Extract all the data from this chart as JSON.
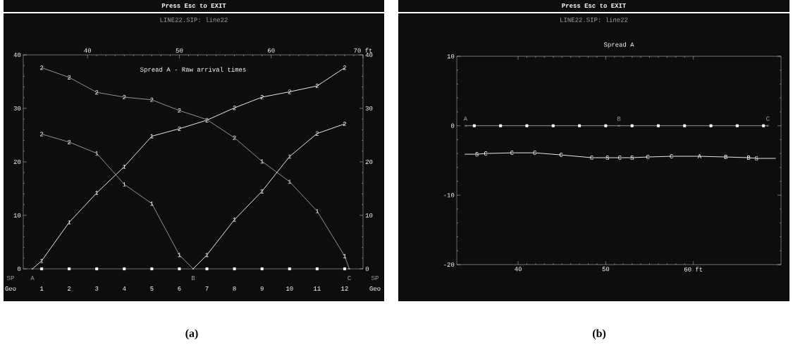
{
  "chart_data": [
    {
      "type": "line",
      "title": "Press Esc to EXIT",
      "subtitle": "LINE22.SIP: line22",
      "xlim": [
        33,
        70
      ],
      "xticks": [
        40,
        50,
        60,
        {
          "value": 70,
          "label": "70 ft"
        }
      ],
      "ylim": [
        0,
        40
      ],
      "yticks": [
        0,
        10,
        20,
        30,
        40
      ],
      "y2lim": [
        0,
        40
      ],
      "y2ticks": [
        0,
        10,
        20,
        30,
        40
      ],
      "series": [
        {
          "color": "#ffffff",
          "x": [
            34,
            35,
            38,
            41,
            44,
            47,
            50,
            53,
            56,
            59,
            62,
            65,
            68
          ],
          "values": [
            0,
            1.5,
            8.7,
            14.2,
            19.1,
            24.8,
            26.2,
            27.8,
            30.1,
            32.1,
            33.1,
            34.2,
            37.6
          ]
        },
        {
          "color": "#a0a0a0",
          "x": [
            35,
            38,
            41,
            44,
            47,
            50,
            51.5
          ],
          "values": [
            25.2,
            23.7,
            21.6,
            15.8,
            12.2,
            2.6,
            0
          ]
        },
        {
          "color": "#ffffff",
          "x": [
            51.5,
            53,
            56,
            59,
            62,
            65,
            68
          ],
          "values": [
            0,
            2.6,
            9.2,
            14.5,
            21.0,
            25.3,
            27.1
          ]
        },
        {
          "color": "#a0a0a0",
          "x": [
            35,
            38,
            41,
            44,
            47,
            50,
            53,
            56,
            59,
            62,
            65,
            68,
            68.5
          ],
          "values": [
            37.6,
            35.8,
            33.0,
            32.1,
            31.6,
            29.6,
            27.9,
            24.5,
            20.1,
            16.3,
            10.8,
            2.4,
            0
          ]
        },
        {
          "type": "scatter",
          "marker": "square",
          "color": "#ffffff",
          "x": [
            35,
            38,
            41,
            44,
            47,
            50,
            53,
            56,
            59,
            62,
            65,
            68
          ],
          "values": [
            0,
            0,
            0,
            0,
            0,
            0,
            0,
            0,
            0,
            0,
            0,
            0
          ]
        },
        {
          "type": "scatter",
          "marker": "cross",
          "color": "#a0a0a0",
          "x": [
            34,
            51.5,
            68.5
          ],
          "values": [
            0,
            0,
            0
          ]
        }
      ],
      "annotations": [
        "Spread A - Raw arrival times",
        "SP",
        "Geo",
        "SP",
        "Geo",
        "(a)",
        "A",
        "B",
        "C",
        "1",
        "2",
        "3",
        "4",
        "5",
        "6",
        "7",
        "8",
        "9",
        "10",
        "11",
        "12",
        {
          "text": "1",
          "x": 35,
          "y": 1.5
        },
        {
          "text": "1",
          "x": 38,
          "y": 8.7
        },
        {
          "text": "1",
          "x": 41,
          "y": 14.2
        },
        {
          "text": "1",
          "x": 44,
          "y": 19.1
        },
        {
          "text": "1",
          "x": 47,
          "y": 24.8
        },
        {
          "text": "2",
          "x": 50,
          "y": 26.2
        },
        {
          "text": "2",
          "x": 53,
          "y": 27.8
        },
        {
          "text": "2",
          "x": 56,
          "y": 30.1
        },
        {
          "text": "2",
          "x": 59,
          "y": 32.1
        },
        {
          "text": "2",
          "x": 62,
          "y": 33.1
        },
        {
          "text": "2",
          "x": 65,
          "y": 34.2
        },
        {
          "text": "2",
          "x": 68,
          "y": 37.6
        },
        {
          "text": "2",
          "x": 35,
          "y": 25.2
        },
        {
          "text": "2",
          "x": 38,
          "y": 23.7
        },
        {
          "text": "1",
          "x": 41,
          "y": 21.6
        },
        {
          "text": "1",
          "x": 44,
          "y": 15.8
        },
        {
          "text": "1",
          "x": 47,
          "y": 12.2
        },
        {
          "text": "1",
          "x": 50,
          "y": 2.6
        },
        {
          "text": "1",
          "x": 53,
          "y": 2.6
        },
        {
          "text": "1",
          "x": 56,
          "y": 9.2
        },
        {
          "text": "1",
          "x": 59,
          "y": 14.5
        },
        {
          "text": "1",
          "x": 62,
          "y": 21.0
        },
        {
          "text": "2",
          "x": 65,
          "y": 25.3
        },
        {
          "text": "2",
          "x": 68,
          "y": 27.1
        },
        {
          "text": "2",
          "x": 35,
          "y": 37.6
        },
        {
          "text": "2",
          "x": 38,
          "y": 35.8
        },
        {
          "text": "2",
          "x": 41,
          "y": 33.0
        },
        {
          "text": "2",
          "x": 44,
          "y": 32.1
        },
        {
          "text": "2",
          "x": 47,
          "y": 31.6
        },
        {
          "text": "2",
          "x": 50,
          "y": 29.6
        },
        {
          "text": "2",
          "x": 56,
          "y": 24.5
        },
        {
          "text": "1",
          "x": 59,
          "y": 20.1
        },
        {
          "text": "1",
          "x": 62,
          "y": 16.3
        },
        {
          "text": "1",
          "x": 65,
          "y": 10.8
        },
        {
          "text": "1",
          "x": 68,
          "y": 2.4
        }
      ]
    },
    {
      "type": "line",
      "title": "Press Esc to EXIT",
      "subtitle": "LINE22.SIP: line22",
      "xlim": [
        33,
        70
      ],
      "xticks": [
        40,
        50,
        {
          "value": 60,
          "label": "60 ft"
        }
      ],
      "ylim": [
        -20,
        10
      ],
      "yticks": [
        -20,
        -10,
        0,
        10
      ],
      "series": [
        {
          "color": "#a0a0a0",
          "x": [
            34,
            68.5
          ],
          "values": [
            0,
            0
          ]
        },
        {
          "type": "scatter",
          "marker": "square",
          "color": "#ffffff",
          "x": [
            35,
            38,
            41,
            44,
            47,
            50,
            53,
            56,
            59,
            62,
            65,
            68
          ],
          "values": [
            0,
            0,
            0,
            0,
            0,
            0,
            0,
            0,
            0,
            0,
            0,
            0
          ]
        },
        {
          "type": "scatter",
          "marker": "cross",
          "color": "#a0a0a0",
          "x": [
            34,
            51.5,
            68.5
          ],
          "values": [
            0,
            0,
            0
          ]
        },
        {
          "color": "#ffffff",
          "x": [
            33.9,
            35.3,
            36.3,
            39.3,
            41.9,
            44.9,
            48.4,
            50.2,
            51.6,
            53.0,
            54.8,
            57.5,
            60.7,
            63.7,
            66.3,
            67.2,
            69.4
          ],
          "values": [
            -4.1,
            -4.1,
            -4.0,
            -3.9,
            -3.9,
            -4.2,
            -4.6,
            -4.6,
            -4.6,
            -4.6,
            -4.5,
            -4.4,
            -4.4,
            -4.5,
            -4.6,
            -4.7,
            -4.7
          ]
        }
      ],
      "annotations": [
        "Spread A",
        "(b)",
        "A",
        "B",
        "C",
        {
          "text": "S",
          "x": 35.3,
          "y": -4.1
        },
        {
          "text": "C",
          "x": 36.3,
          "y": -4.0
        },
        {
          "text": "C",
          "x": 39.3,
          "y": -3.9
        },
        {
          "text": "C",
          "x": 41.9,
          "y": -3.9
        },
        {
          "text": "C",
          "x": 44.9,
          "y": -4.2
        },
        {
          "text": "C",
          "x": 48.4,
          "y": -4.6
        },
        {
          "text": "S",
          "x": 50.2,
          "y": -4.6
        },
        {
          "text": "C",
          "x": 51.6,
          "y": -4.6
        },
        {
          "text": "S",
          "x": 53.0,
          "y": -4.6
        },
        {
          "text": "C",
          "x": 54.8,
          "y": -4.5
        },
        {
          "text": "C",
          "x": 57.5,
          "y": -4.4
        },
        {
          "text": "A",
          "x": 60.7,
          "y": -4.4
        },
        {
          "text": "B",
          "x": 63.7,
          "y": -4.5
        },
        {
          "text": "B",
          "x": 66.3,
          "y": -4.6
        },
        {
          "text": "S",
          "x": 67.2,
          "y": -4.7
        }
      ]
    }
  ]
}
